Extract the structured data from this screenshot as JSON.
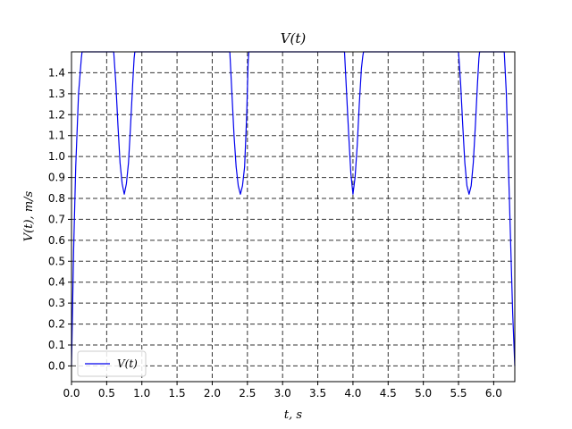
{
  "chart_data": {
    "type": "line",
    "title": "V(t)",
    "xlabel": "t, s",
    "ylabel": "V(t), m/s",
    "xlim": [
      0,
      6.3
    ],
    "ylim": [
      -0.075,
      1.5
    ],
    "xticks": [
      0.0,
      0.5,
      1.0,
      1.5,
      2.0,
      2.5,
      3.0,
      3.5,
      4.0,
      4.5,
      5.0,
      5.5,
      6.0
    ],
    "xtick_labels": [
      "0.0",
      "0.5",
      "1.0",
      "1.5",
      "2.0",
      "2.5",
      "3.0",
      "3.5",
      "4.0",
      "4.5",
      "5.0",
      "5.5",
      "6.0"
    ],
    "yticks": [
      0.0,
      0.1,
      0.2,
      0.3,
      0.4,
      0.5,
      0.6,
      0.7,
      0.8,
      0.9,
      1.0,
      1.1,
      1.2,
      1.3,
      1.4
    ],
    "ytick_labels": [
      "0.0",
      "0.1",
      "0.2",
      "0.3",
      "0.4",
      "0.5",
      "0.6",
      "0.7",
      "0.8",
      "0.9",
      "1.0",
      "1.1",
      "1.2",
      "1.3",
      "1.4"
    ],
    "grid": true,
    "legend_position": "lower-left",
    "color": "#0000ee",
    "series": [
      {
        "name": "V(t)",
        "x": [
          0.0,
          0.03,
          0.06,
          0.1,
          0.14,
          0.15,
          0.6,
          0.63,
          0.66,
          0.69,
          0.72,
          0.75,
          0.78,
          0.81,
          0.84,
          0.87,
          0.89,
          0.9,
          2.25,
          2.28,
          2.31,
          2.34,
          2.37,
          2.4,
          2.43,
          2.46,
          2.49,
          2.51,
          2.52,
          3.88,
          3.91,
          3.94,
          3.97,
          4.0,
          4.03,
          4.06,
          4.09,
          4.12,
          4.14,
          4.15,
          5.5,
          5.53,
          5.56,
          5.59,
          5.62,
          5.65,
          5.68,
          5.71,
          5.74,
          5.77,
          5.79,
          5.8,
          6.15,
          6.18,
          6.21,
          6.24,
          6.27,
          6.3
        ],
        "y": [
          0.0,
          0.55,
          0.95,
          1.3,
          1.47,
          1.5,
          1.5,
          1.35,
          1.15,
          0.97,
          0.87,
          0.82,
          0.87,
          0.97,
          1.15,
          1.35,
          1.47,
          1.5,
          1.5,
          1.3,
          1.1,
          0.95,
          0.86,
          0.82,
          0.86,
          0.95,
          1.2,
          1.45,
          1.5,
          1.5,
          1.3,
          1.1,
          0.92,
          0.82,
          0.9,
          1.05,
          1.25,
          1.42,
          1.48,
          1.5,
          1.5,
          1.35,
          1.15,
          0.97,
          0.86,
          0.82,
          0.86,
          0.97,
          1.15,
          1.35,
          1.47,
          1.5,
          1.5,
          1.3,
          0.95,
          0.6,
          0.25,
          0.0
        ]
      }
    ]
  }
}
